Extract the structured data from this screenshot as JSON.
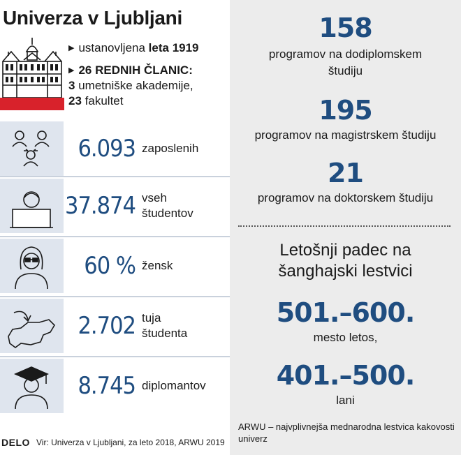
{
  "title": "Univerza v Ljubljani",
  "facts": {
    "founded_prefix": "ustanovljena",
    "founded_bold": "leta 1919",
    "members_bold": "26 REDNIH ČLANIC:",
    "academies_num": "3",
    "academies_text": "umetniške akademije,",
    "faculties_num": "23",
    "faculties_text": "fakultet"
  },
  "stats": [
    {
      "value": "6.093",
      "label1": "zaposlenih",
      "label2": "",
      "icon": "people-network-icon"
    },
    {
      "value": "37.874",
      "label1": "vseh",
      "label2": "študentov",
      "icon": "student-laptop-icon"
    },
    {
      "value": "60 %",
      "label1": "žensk",
      "label2": "",
      "icon": "woman-icon"
    },
    {
      "value": "2.702",
      "label1": "tuja",
      "label2": "študenta",
      "icon": "slovenia-map-arrow-icon"
    },
    {
      "value": "8.745",
      "label1": "diplomantov",
      "label2": "",
      "icon": "graduate-icon"
    }
  ],
  "programs": [
    {
      "value": "158",
      "text": "programov na dodiplomskem študiju"
    },
    {
      "value": "195",
      "text": "programov na magistrskem študiju"
    },
    {
      "value": "21",
      "text": "programov na doktorskem študiju"
    }
  ],
  "ranking": {
    "heading": "Letošnji padec na šanghajski lestvici",
    "current_value": "501.–600.",
    "current_label": "mesto letos,",
    "previous_value": "401.–500.",
    "previous_label": "lani",
    "note": "ARWU – najvplivnejša mednarodna lestvica kakovosti univerz"
  },
  "footer": {
    "brand": "DELO",
    "source": "Vir: Univerza v Ljubljani, za leto 2018, ARWU 2019"
  },
  "colors": {
    "accent_blue": "#1f4d80",
    "icon_bg": "#dfe5ee",
    "right_panel": "#ececec",
    "red_bar": "#d8222b"
  }
}
